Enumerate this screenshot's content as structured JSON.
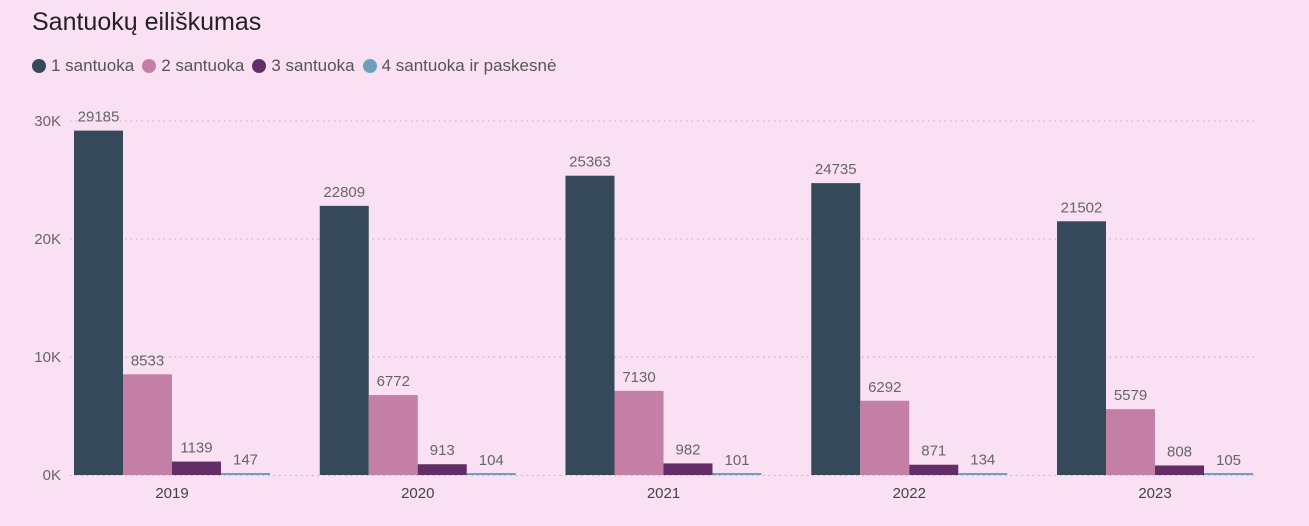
{
  "chart_data": {
    "type": "bar",
    "title": "Santuokų eiliškumas",
    "categories": [
      "2019",
      "2020",
      "2021",
      "2022",
      "2023"
    ],
    "series": [
      {
        "name": "1 santuoka",
        "color": "#35495a",
        "values": [
          29185,
          22809,
          25363,
          24735,
          21502
        ]
      },
      {
        "name": "2 santuoka",
        "color": "#c47fa6",
        "values": [
          8533,
          6772,
          7130,
          6292,
          5579
        ]
      },
      {
        "name": "3 santuoka",
        "color": "#632e67",
        "values": [
          1139,
          913,
          982,
          871,
          808
        ]
      },
      {
        "name": "4 santuoka ir paskesnė",
        "color": "#6f9fbf",
        "values": [
          147,
          104,
          101,
          134,
          105
        ]
      }
    ],
    "yticks": [
      {
        "value": 0,
        "label": "0K"
      },
      {
        "value": 10000,
        "label": "10K"
      },
      {
        "value": 20000,
        "label": "20K"
      },
      {
        "value": 30000,
        "label": "30K"
      }
    ],
    "ylim": [
      0,
      30000
    ],
    "grid": true,
    "legend": "top-left",
    "xlabel": "",
    "ylabel": ""
  }
}
